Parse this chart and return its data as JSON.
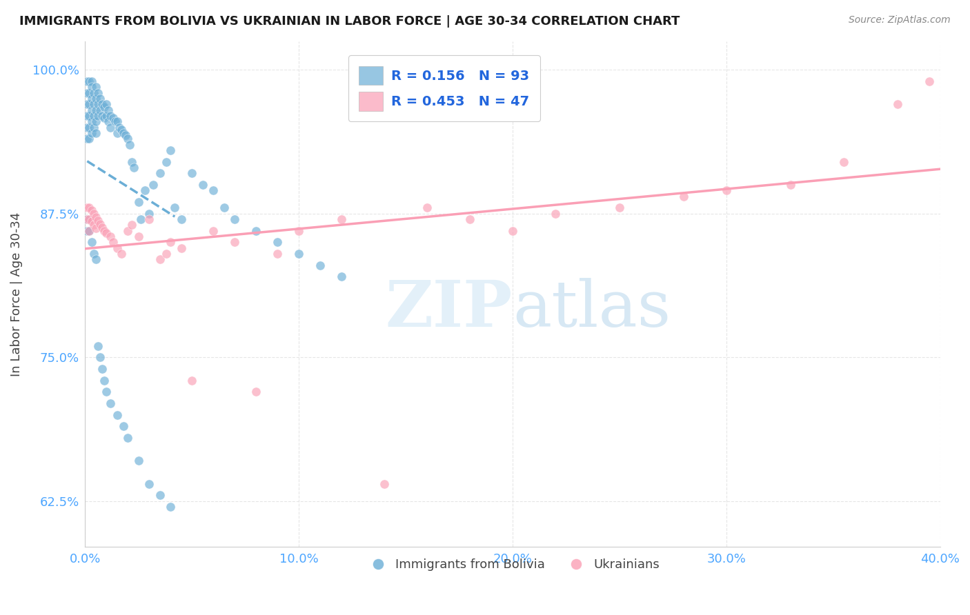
{
  "title": "IMMIGRANTS FROM BOLIVIA VS UKRAINIAN IN LABOR FORCE | AGE 30-34 CORRELATION CHART",
  "source": "Source: ZipAtlas.com",
  "ylabel": "In Labor Force | Age 30-34",
  "xlim": [
    0.0,
    0.4
  ],
  "ylim": [
    0.585,
    1.025
  ],
  "xticks": [
    0.0,
    0.1,
    0.2,
    0.3,
    0.4
  ],
  "xticklabels": [
    "0.0%",
    "10.0%",
    "20.0%",
    "30.0%",
    "40.0%"
  ],
  "yticks": [
    0.625,
    0.75,
    0.875,
    1.0
  ],
  "yticklabels": [
    "62.5%",
    "75.0%",
    "87.5%",
    "100.0%"
  ],
  "bolivia_color": "#6baed6",
  "ukraine_color": "#fa9fb5",
  "bolivia_R": 0.156,
  "bolivia_N": 93,
  "ukraine_R": 0.453,
  "ukraine_N": 47,
  "legend_labels": [
    "Immigrants from Bolivia",
    "Ukrainians"
  ],
  "watermark_zip": "ZIP",
  "watermark_atlas": "atlas",
  "bolivia_x": [
    0.001,
    0.001,
    0.001,
    0.001,
    0.001,
    0.001,
    0.002,
    0.002,
    0.002,
    0.002,
    0.002,
    0.002,
    0.003,
    0.003,
    0.003,
    0.003,
    0.003,
    0.003,
    0.004,
    0.004,
    0.004,
    0.004,
    0.005,
    0.005,
    0.005,
    0.005,
    0.005,
    0.006,
    0.006,
    0.006,
    0.007,
    0.007,
    0.008,
    0.008,
    0.009,
    0.009,
    0.01,
    0.01,
    0.011,
    0.011,
    0.012,
    0.012,
    0.013,
    0.014,
    0.015,
    0.015,
    0.016,
    0.017,
    0.018,
    0.019,
    0.02,
    0.021,
    0.022,
    0.023,
    0.025,
    0.026,
    0.028,
    0.03,
    0.032,
    0.035,
    0.038,
    0.04,
    0.042,
    0.045,
    0.05,
    0.055,
    0.06,
    0.065,
    0.07,
    0.08,
    0.09,
    0.1,
    0.11,
    0.12,
    0.001,
    0.001,
    0.002,
    0.003,
    0.004,
    0.005,
    0.006,
    0.007,
    0.008,
    0.009,
    0.01,
    0.012,
    0.015,
    0.018,
    0.02,
    0.025,
    0.03,
    0.035,
    0.04
  ],
  "bolivia_y": [
    0.99,
    0.98,
    0.97,
    0.96,
    0.95,
    0.94,
    0.99,
    0.98,
    0.97,
    0.96,
    0.95,
    0.94,
    0.99,
    0.985,
    0.975,
    0.965,
    0.955,
    0.945,
    0.98,
    0.97,
    0.96,
    0.95,
    0.985,
    0.975,
    0.965,
    0.955,
    0.945,
    0.98,
    0.97,
    0.96,
    0.975,
    0.965,
    0.97,
    0.96,
    0.968,
    0.958,
    0.97,
    0.96,
    0.965,
    0.955,
    0.96,
    0.95,
    0.958,
    0.955,
    0.955,
    0.945,
    0.95,
    0.948,
    0.945,
    0.943,
    0.94,
    0.935,
    0.92,
    0.915,
    0.885,
    0.87,
    0.895,
    0.875,
    0.9,
    0.91,
    0.92,
    0.93,
    0.88,
    0.87,
    0.91,
    0.9,
    0.895,
    0.88,
    0.87,
    0.86,
    0.85,
    0.84,
    0.83,
    0.82,
    0.87,
    0.86,
    0.86,
    0.85,
    0.84,
    0.835,
    0.76,
    0.75,
    0.74,
    0.73,
    0.72,
    0.71,
    0.7,
    0.69,
    0.68,
    0.66,
    0.64,
    0.63,
    0.62
  ],
  "ukraine_x": [
    0.001,
    0.001,
    0.002,
    0.002,
    0.002,
    0.003,
    0.003,
    0.004,
    0.004,
    0.005,
    0.005,
    0.006,
    0.007,
    0.008,
    0.009,
    0.01,
    0.012,
    0.013,
    0.015,
    0.017,
    0.02,
    0.022,
    0.025,
    0.03,
    0.035,
    0.038,
    0.04,
    0.045,
    0.05,
    0.06,
    0.07,
    0.08,
    0.09,
    0.1,
    0.12,
    0.14,
    0.16,
    0.18,
    0.2,
    0.22,
    0.25,
    0.28,
    0.3,
    0.33,
    0.355,
    0.38,
    0.395
  ],
  "ukraine_y": [
    0.88,
    0.87,
    0.88,
    0.87,
    0.86,
    0.878,
    0.868,
    0.875,
    0.865,
    0.872,
    0.862,
    0.869,
    0.866,
    0.863,
    0.86,
    0.858,
    0.855,
    0.85,
    0.845,
    0.84,
    0.86,
    0.865,
    0.855,
    0.87,
    0.835,
    0.84,
    0.85,
    0.845,
    0.73,
    0.86,
    0.85,
    0.72,
    0.84,
    0.86,
    0.87,
    0.64,
    0.88,
    0.87,
    0.86,
    0.875,
    0.88,
    0.89,
    0.895,
    0.9,
    0.92,
    0.97,
    0.99
  ]
}
